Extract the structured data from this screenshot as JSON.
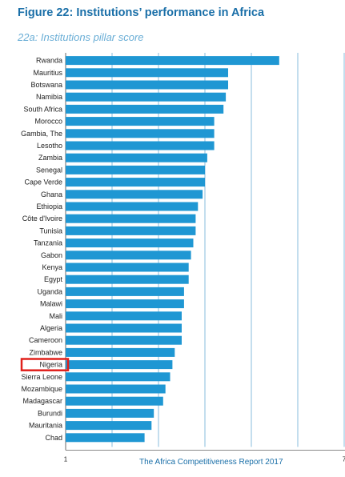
{
  "figure": {
    "title": "Figure 22: Institutions’ performance in Africa",
    "subtitle": "22a: Institutions pillar score",
    "footer": "The Africa Competitiveness Report 2017"
  },
  "colors": {
    "title": "#1a6fa8",
    "subtitle": "#6aaed6",
    "bar": "#1f97d3",
    "grid": "#6aaed6",
    "highlight_box": "#e0201b"
  },
  "chart_data": {
    "type": "bar",
    "orientation": "horizontal",
    "categories": [
      "Rwanda",
      "Mauritius",
      "Botswana",
      "Namibia",
      "South Africa",
      "Morocco",
      "Gambia, The",
      "Lesotho",
      "Zambia",
      "Senegal",
      "Cape Verde",
      "Ghana",
      "Ethiopia",
      "Côte d'Ivoire",
      "Tunisia",
      "Tanzania",
      "Gabon",
      "Kenya",
      "Egypt",
      "Uganda",
      "Malawi",
      "Mali",
      "Algeria",
      "Cameroon",
      "Zimbabwe",
      "Nigeria",
      "Sierra Leone",
      "Mozambique",
      "Madagascar",
      "Burundi",
      "Mauritania",
      "Chad"
    ],
    "values": [
      5.6,
      4.5,
      4.5,
      4.45,
      4.4,
      4.2,
      4.2,
      4.2,
      4.05,
      4.0,
      4.0,
      3.95,
      3.85,
      3.8,
      3.8,
      3.75,
      3.7,
      3.65,
      3.65,
      3.55,
      3.55,
      3.5,
      3.5,
      3.5,
      3.35,
      3.3,
      3.25,
      3.15,
      3.1,
      2.9,
      2.85,
      2.7
    ],
    "xlim": [
      1,
      7
    ],
    "x_ticks_shown": [
      "1",
      "7"
    ],
    "grid": true,
    "highlighted_category": "Nigeria"
  }
}
